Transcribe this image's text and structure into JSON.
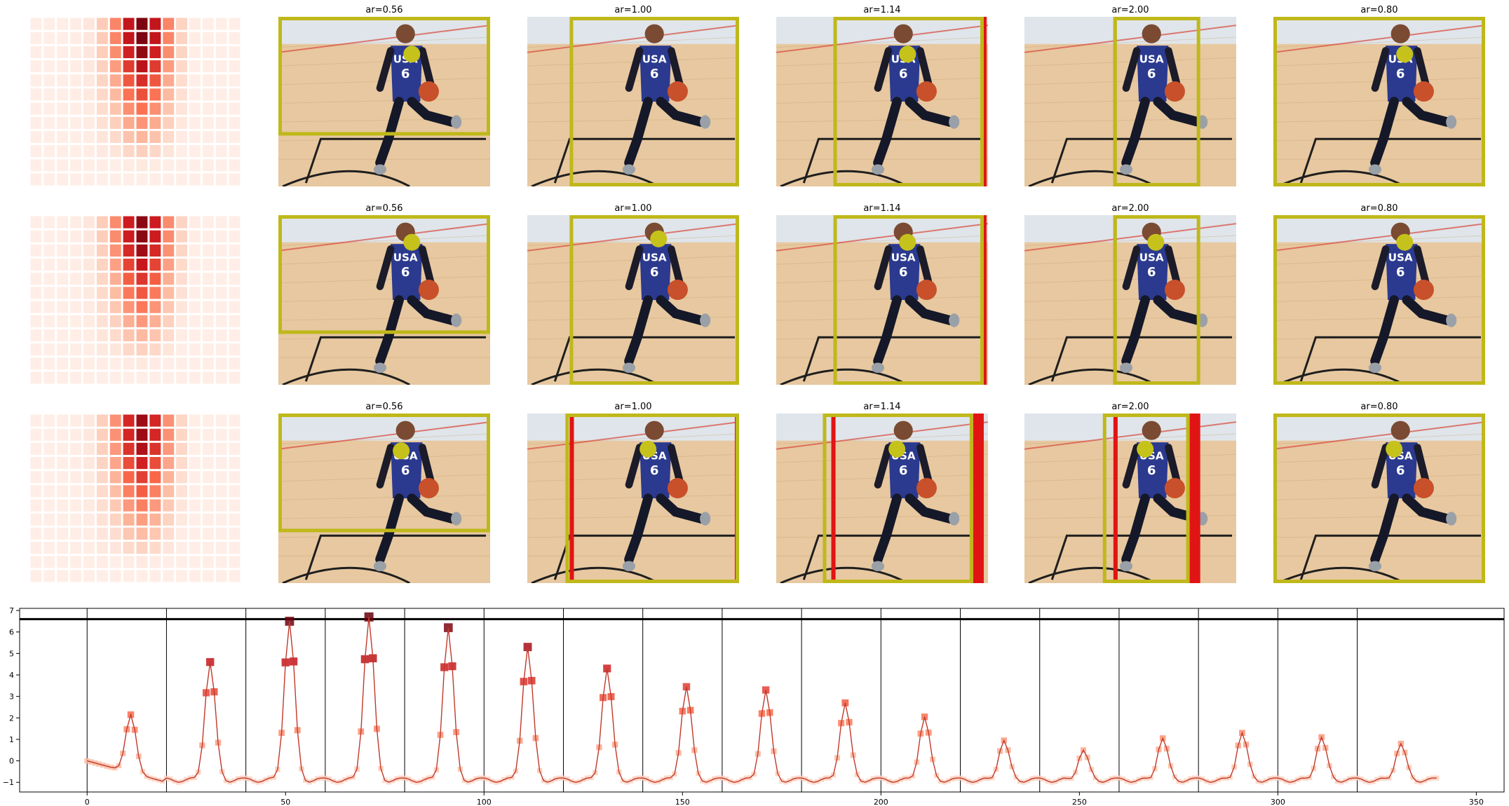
{
  "figure": {
    "rows": 3,
    "panel_titles": [
      "ar=0.56",
      "ar=1.00",
      "ar=1.14",
      "ar=2.00",
      "ar=0.80"
    ],
    "photo": {
      "jersey_text": "USA",
      "jersey_number": "6",
      "colors": {
        "sky": "#dfe5ea",
        "floor": "#e7c8a0",
        "floor_dark": "#c99f6f",
        "jersey": "#2b3a8f",
        "skin": "#7a4a32",
        "ball": "#c8502a",
        "court_line": "#1e1e1e"
      }
    },
    "overlay_colors": {
      "box": "#bfb81a",
      "marker": "#c6c21c",
      "red": "#e11414"
    },
    "heatmap": {
      "grid": [
        12,
        16
      ],
      "colormap": "Reds",
      "description_hint": "attention mass concentrated in columns 6-9, upper rows"
    }
  },
  "chart_data": {
    "type": "line",
    "title": "",
    "xlabel": "",
    "ylabel": "",
    "xlim": [
      -17,
      357
    ],
    "ylim": [
      -1.45,
      7.1
    ],
    "xticks": [
      0,
      50,
      100,
      150,
      200,
      250,
      300,
      350
    ],
    "yticks": [
      -1,
      0,
      1,
      2,
      3,
      4,
      5,
      6,
      7
    ],
    "vlines": [
      0,
      20,
      40,
      60,
      80,
      100,
      120,
      140,
      160,
      180,
      200,
      220,
      240,
      260,
      280,
      300,
      320
    ],
    "hline": 6.6,
    "grid": false,
    "line_color": "#c0392b",
    "peaks": [
      {
        "x": 11.5,
        "y": 2.15
      },
      {
        "x": 31.5,
        "y": 4.6
      },
      {
        "x": 51.5,
        "y": 6.5
      },
      {
        "x": 71.5,
        "y": 6.7
      },
      {
        "x": 91.5,
        "y": 6.2
      },
      {
        "x": 111.5,
        "y": 5.3
      },
      {
        "x": 131.5,
        "y": 4.3
      },
      {
        "x": 151.5,
        "y": 3.45
      },
      {
        "x": 171.5,
        "y": 3.3
      },
      {
        "x": 191.5,
        "y": 2.7
      },
      {
        "x": 211.5,
        "y": 2.05
      },
      {
        "x": 231.5,
        "y": 0.95
      },
      {
        "x": 251.5,
        "y": 0.5
      },
      {
        "x": 271.5,
        "y": 1.05
      },
      {
        "x": 291.5,
        "y": 1.3
      },
      {
        "x": 311.5,
        "y": 1.1
      },
      {
        "x": 331.5,
        "y": 0.8
      }
    ],
    "baseline": {
      "start": 0.25,
      "trough": -0.9
    },
    "markers": {
      "shape": "square",
      "colormap": "Reds",
      "x_range": [
        0,
        340
      ]
    }
  }
}
